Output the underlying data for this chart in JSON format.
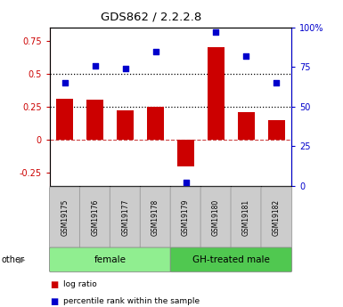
{
  "title": "GDS862 / 2.2.2.8",
  "samples": [
    "GSM19175",
    "GSM19176",
    "GSM19177",
    "GSM19178",
    "GSM19179",
    "GSM19180",
    "GSM19181",
    "GSM19182"
  ],
  "log_ratio": [
    0.31,
    0.3,
    0.22,
    0.25,
    -0.2,
    0.7,
    0.21,
    0.15
  ],
  "percentile_rank": [
    65,
    76,
    74,
    85,
    2,
    97,
    82,
    65
  ],
  "groups": [
    {
      "label": "female",
      "start": 0,
      "end": 4,
      "color": "#90EE90"
    },
    {
      "label": "GH-treated male",
      "start": 4,
      "end": 8,
      "color": "#50C850"
    }
  ],
  "bar_color": "#CC0000",
  "dot_color": "#0000CC",
  "ylim_left": [
    -0.35,
    0.85
  ],
  "ylim_right": [
    0,
    100
  ],
  "yticks_left": [
    -0.25,
    0.0,
    0.25,
    0.5,
    0.75
  ],
  "ytick_labels_left": [
    "-0.25",
    "0",
    "0.25",
    "0.5",
    "0.75"
  ],
  "yticks_right": [
    0,
    25,
    50,
    75,
    100
  ],
  "ytick_labels_right": [
    "0",
    "25",
    "50",
    "75",
    "100%"
  ],
  "hline_zero": 0.0,
  "hline_dotted1": 0.25,
  "hline_dotted2": 0.5,
  "bar_width": 0.55,
  "legend_items": [
    "log ratio",
    "percentile rank within the sample"
  ],
  "left_axis_color": "#CC0000",
  "right_axis_color": "#0000CC",
  "background_color": "#ffffff",
  "sample_box_color": "#cccccc",
  "other_label": "other"
}
